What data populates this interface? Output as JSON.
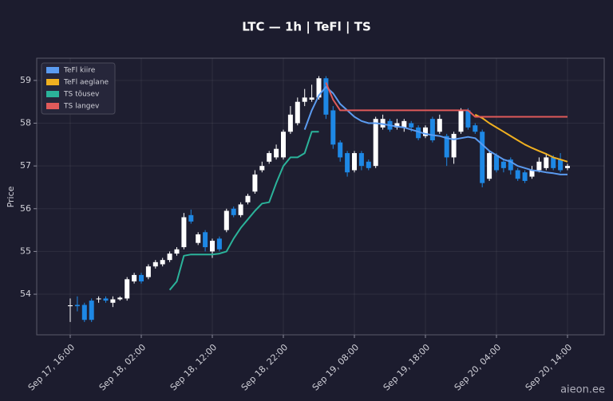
{
  "chart_data": {
    "type": "candlestick",
    "title": "LTC — 1h  |  TeFl  |  TS",
    "ylabel": "Price",
    "x": [
      "Sep 17, 16:00",
      "Sep 17, 17:00",
      "Sep 17, 18:00",
      "Sep 17, 19:00",
      "Sep 17, 20:00",
      "Sep 17, 21:00",
      "Sep 17, 22:00",
      "Sep 17, 23:00",
      "Sep 18, 00:00",
      "Sep 18, 01:00",
      "Sep 18, 02:00",
      "Sep 18, 03:00",
      "Sep 18, 04:00",
      "Sep 18, 05:00",
      "Sep 18, 06:00",
      "Sep 18, 07:00",
      "Sep 18, 08:00",
      "Sep 18, 09:00",
      "Sep 18, 10:00",
      "Sep 18, 11:00",
      "Sep 18, 12:00",
      "Sep 18, 13:00",
      "Sep 18, 14:00",
      "Sep 18, 15:00",
      "Sep 18, 16:00",
      "Sep 18, 17:00",
      "Sep 18, 18:00",
      "Sep 18, 19:00",
      "Sep 18, 20:00",
      "Sep 18, 21:00",
      "Sep 18, 22:00",
      "Sep 18, 23:00",
      "Sep 19, 00:00",
      "Sep 19, 01:00",
      "Sep 19, 02:00",
      "Sep 19, 03:00",
      "Sep 19, 04:00",
      "Sep 19, 05:00",
      "Sep 19, 06:00",
      "Sep 19, 07:00",
      "Sep 19, 08:00",
      "Sep 19, 09:00",
      "Sep 19, 10:00",
      "Sep 19, 11:00",
      "Sep 19, 12:00",
      "Sep 19, 13:00",
      "Sep 19, 14:00",
      "Sep 19, 15:00",
      "Sep 19, 16:00",
      "Sep 19, 17:00",
      "Sep 19, 18:00",
      "Sep 19, 19:00",
      "Sep 19, 20:00",
      "Sep 19, 21:00",
      "Sep 19, 22:00",
      "Sep 19, 23:00",
      "Sep 20, 00:00",
      "Sep 20, 01:00",
      "Sep 20, 02:00",
      "Sep 20, 03:00",
      "Sep 20, 04:00",
      "Sep 20, 05:00",
      "Sep 20, 06:00",
      "Sep 20, 07:00",
      "Sep 20, 08:00",
      "Sep 20, 09:00",
      "Sep 20, 10:00",
      "Sep 20, 11:00",
      "Sep 20, 12:00",
      "Sep 20, 13:00",
      "Sep 20, 14:00"
    ],
    "open": [
      53.72,
      53.75,
      53.75,
      53.85,
      53.88,
      53.9,
      53.8,
      53.88,
      53.9,
      54.3,
      54.45,
      54.4,
      54.65,
      54.7,
      54.8,
      54.95,
      55.1,
      55.85,
      55.2,
      55.45,
      55.0,
      55.3,
      55.5,
      56.0,
      55.85,
      56.15,
      56.4,
      56.9,
      57.1,
      57.2,
      57.2,
      57.8,
      58.0,
      58.5,
      58.55,
      58.6,
      59.05,
      58.3,
      57.55,
      57.3,
      56.9,
      57.3,
      57.1,
      57.0,
      57.9,
      58.05,
      57.9,
      57.9,
      58.0,
      57.9,
      57.7,
      58.1,
      57.8,
      57.7,
      57.2,
      57.8,
      58.3,
      57.95,
      57.8,
      56.7,
      57.25,
      57.1,
      57.15,
      56.9,
      56.85,
      56.75,
      56.9,
      56.95,
      57.2,
      57.15,
      56.95
    ],
    "high": [
      53.9,
      53.95,
      53.8,
      53.9,
      53.95,
      53.95,
      53.95,
      53.95,
      54.4,
      54.5,
      54.5,
      54.7,
      54.8,
      54.85,
      55.0,
      55.1,
      55.9,
      55.98,
      55.45,
      55.5,
      55.3,
      55.35,
      56.0,
      56.05,
      56.15,
      56.35,
      56.9,
      57.1,
      57.35,
      57.5,
      57.85,
      58.4,
      58.6,
      58.8,
      58.9,
      59.1,
      59.1,
      58.4,
      57.6,
      57.35,
      57.35,
      57.35,
      57.15,
      58.15,
      58.2,
      58.1,
      58.1,
      58.1,
      58.05,
      57.95,
      57.95,
      58.15,
      58.2,
      57.75,
      57.8,
      58.35,
      58.35,
      58.0,
      57.85,
      57.35,
      57.3,
      57.15,
      57.2,
      56.95,
      56.9,
      57.0,
      57.2,
      57.3,
      57.25,
      57.3,
      57.05
    ],
    "low": [
      53.35,
      53.6,
      53.35,
      53.35,
      53.8,
      53.8,
      53.7,
      53.85,
      53.85,
      54.25,
      54.25,
      54.35,
      54.6,
      54.65,
      54.75,
      54.9,
      55.05,
      55.65,
      55.15,
      55.0,
      54.85,
      55.0,
      55.45,
      55.8,
      55.8,
      56.1,
      56.35,
      56.85,
      57.05,
      57.15,
      57.15,
      57.75,
      57.95,
      58.4,
      58.5,
      58.55,
      58.1,
      57.4,
      57.1,
      56.75,
      56.85,
      56.9,
      56.9,
      56.95,
      57.85,
      57.8,
      57.85,
      57.8,
      57.8,
      57.6,
      57.65,
      57.55,
      57.75,
      57.0,
      57.05,
      57.75,
      57.85,
      57.75,
      56.5,
      56.65,
      56.85,
      56.85,
      56.8,
      56.65,
      56.6,
      56.7,
      56.85,
      56.9,
      56.9,
      56.85,
      56.9
    ],
    "close": [
      53.74,
      53.72,
      53.4,
      53.4,
      53.9,
      53.85,
      53.88,
      53.92,
      54.35,
      54.45,
      54.3,
      54.65,
      54.75,
      54.8,
      54.95,
      55.05,
      55.8,
      55.7,
      55.4,
      55.1,
      55.25,
      55.05,
      55.95,
      55.85,
      56.1,
      56.3,
      56.8,
      57.0,
      57.3,
      57.4,
      57.8,
      58.2,
      58.5,
      58.6,
      58.6,
      59.05,
      58.2,
      57.5,
      57.2,
      56.85,
      57.3,
      57.0,
      56.95,
      58.1,
      58.1,
      57.85,
      58.0,
      58.05,
      57.9,
      57.65,
      57.9,
      57.6,
      58.1,
      57.2,
      57.75,
      58.3,
      57.9,
      57.8,
      56.6,
      57.3,
      56.9,
      56.95,
      56.9,
      56.7,
      56.65,
      56.9,
      57.1,
      57.2,
      56.95,
      56.9,
      57.0
    ],
    "up_color": "#ffffff",
    "down_color": "#1e88e5",
    "lines": [
      {
        "name": "TeFl kiire",
        "color": "#5b9bf0",
        "values": [
          null,
          null,
          null,
          null,
          null,
          null,
          null,
          null,
          null,
          null,
          null,
          null,
          null,
          null,
          null,
          null,
          null,
          null,
          null,
          null,
          null,
          null,
          null,
          null,
          null,
          null,
          null,
          null,
          null,
          null,
          null,
          null,
          null,
          57.85,
          58.3,
          58.65,
          58.85,
          58.7,
          58.45,
          58.3,
          58.15,
          58.05,
          58.0,
          58.0,
          57.98,
          57.95,
          57.92,
          57.9,
          57.85,
          57.8,
          57.75,
          57.72,
          57.7,
          57.65,
          57.62,
          57.65,
          57.68,
          57.65,
          57.5,
          57.35,
          57.25,
          57.15,
          57.1,
          57.0,
          56.95,
          56.9,
          56.88,
          56.85,
          56.83,
          56.8,
          56.8
        ]
      },
      {
        "name": "TeFl aeglane",
        "color": "#f0b020",
        "values": [
          null,
          null,
          null,
          null,
          null,
          null,
          null,
          null,
          null,
          null,
          null,
          null,
          null,
          null,
          null,
          null,
          null,
          null,
          null,
          null,
          null,
          null,
          null,
          null,
          null,
          null,
          null,
          null,
          null,
          null,
          null,
          null,
          null,
          null,
          null,
          null,
          null,
          null,
          null,
          null,
          null,
          null,
          null,
          null,
          null,
          null,
          null,
          null,
          null,
          null,
          null,
          null,
          null,
          null,
          null,
          null,
          null,
          58.2,
          58.12,
          58.0,
          57.9,
          57.8,
          57.7,
          57.6,
          57.5,
          57.42,
          57.35,
          57.28,
          57.2,
          57.15,
          57.1
        ]
      },
      {
        "name": "TS tõusev",
        "color": "#2bb39a",
        "values": [
          null,
          null,
          null,
          null,
          null,
          null,
          null,
          null,
          null,
          null,
          null,
          null,
          null,
          null,
          54.1,
          54.3,
          54.9,
          54.93,
          54.93,
          54.93,
          54.93,
          54.95,
          55.0,
          55.3,
          55.55,
          55.75,
          55.95,
          56.12,
          56.15,
          56.6,
          57.0,
          57.2,
          57.2,
          57.3,
          57.8,
          57.8,
          null,
          null,
          null,
          null,
          null,
          null,
          null,
          null,
          null,
          null,
          null,
          null,
          null,
          null,
          null,
          null,
          null,
          null,
          null,
          null,
          null,
          null,
          null,
          null,
          null,
          null,
          null,
          null,
          null,
          null,
          null,
          null,
          null,
          null,
          null
        ]
      },
      {
        "name": "TS langev",
        "color": "#e05a5a",
        "values": [
          null,
          null,
          null,
          null,
          null,
          null,
          null,
          null,
          null,
          null,
          null,
          null,
          null,
          null,
          null,
          null,
          null,
          null,
          null,
          null,
          null,
          null,
          null,
          null,
          null,
          null,
          null,
          null,
          null,
          null,
          null,
          null,
          null,
          null,
          null,
          null,
          58.95,
          58.55,
          58.3,
          58.3,
          58.3,
          58.3,
          58.3,
          58.3,
          58.3,
          58.3,
          58.3,
          58.3,
          58.3,
          58.3,
          58.3,
          58.3,
          58.3,
          58.3,
          58.3,
          58.3,
          58.3,
          58.15,
          58.15,
          58.15,
          58.15,
          58.15,
          58.15,
          58.15,
          58.15,
          58.15,
          58.15,
          58.15,
          58.15,
          58.15,
          58.15
        ]
      }
    ],
    "ylim": [
      53.05,
      59.52
    ],
    "yticks": [
      54,
      55,
      56,
      57,
      58,
      59
    ],
    "xticks": [
      "Sep 17, 16:00",
      "Sep 18, 02:00",
      "Sep 18, 12:00",
      "Sep 18, 22:00",
      "Sep 19, 08:00",
      "Sep 19, 18:00",
      "Sep 20, 04:00",
      "Sep 20, 14:00"
    ],
    "grid": true,
    "legend": "upper left"
  },
  "watermark": "aieon.ee"
}
